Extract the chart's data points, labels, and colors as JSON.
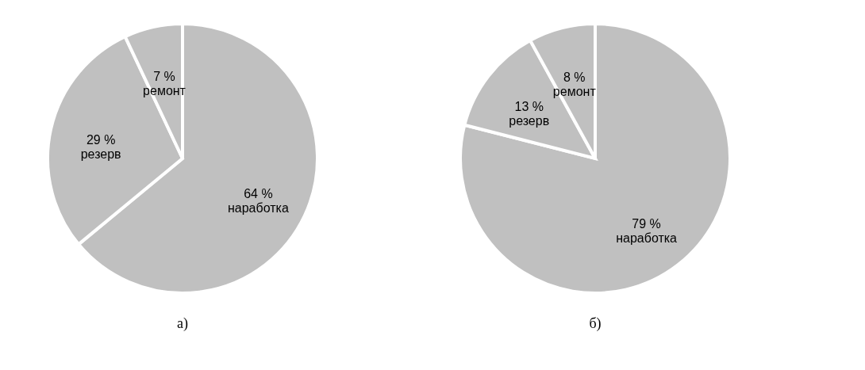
{
  "chart_data": [
    {
      "type": "pie",
      "title": "а)",
      "categories": [
        "наработка",
        "резерв",
        "ремонт"
      ],
      "values": [
        64,
        29,
        7
      ],
      "colors": [
        "#c0c0c0",
        "#c0c0c0",
        "#c0c0c0"
      ],
      "value_labels": [
        "64 %",
        "29 %",
        "7 %"
      ]
    },
    {
      "type": "pie",
      "title": "б)",
      "categories": [
        "наработка",
        "резерв",
        "ремонт"
      ],
      "values": [
        79,
        13,
        8
      ],
      "colors": [
        "#c0c0c0",
        "#c0c0c0",
        "#c0c0c0"
      ],
      "value_labels": [
        "79 %",
        "13  %",
        "8 %"
      ]
    }
  ]
}
